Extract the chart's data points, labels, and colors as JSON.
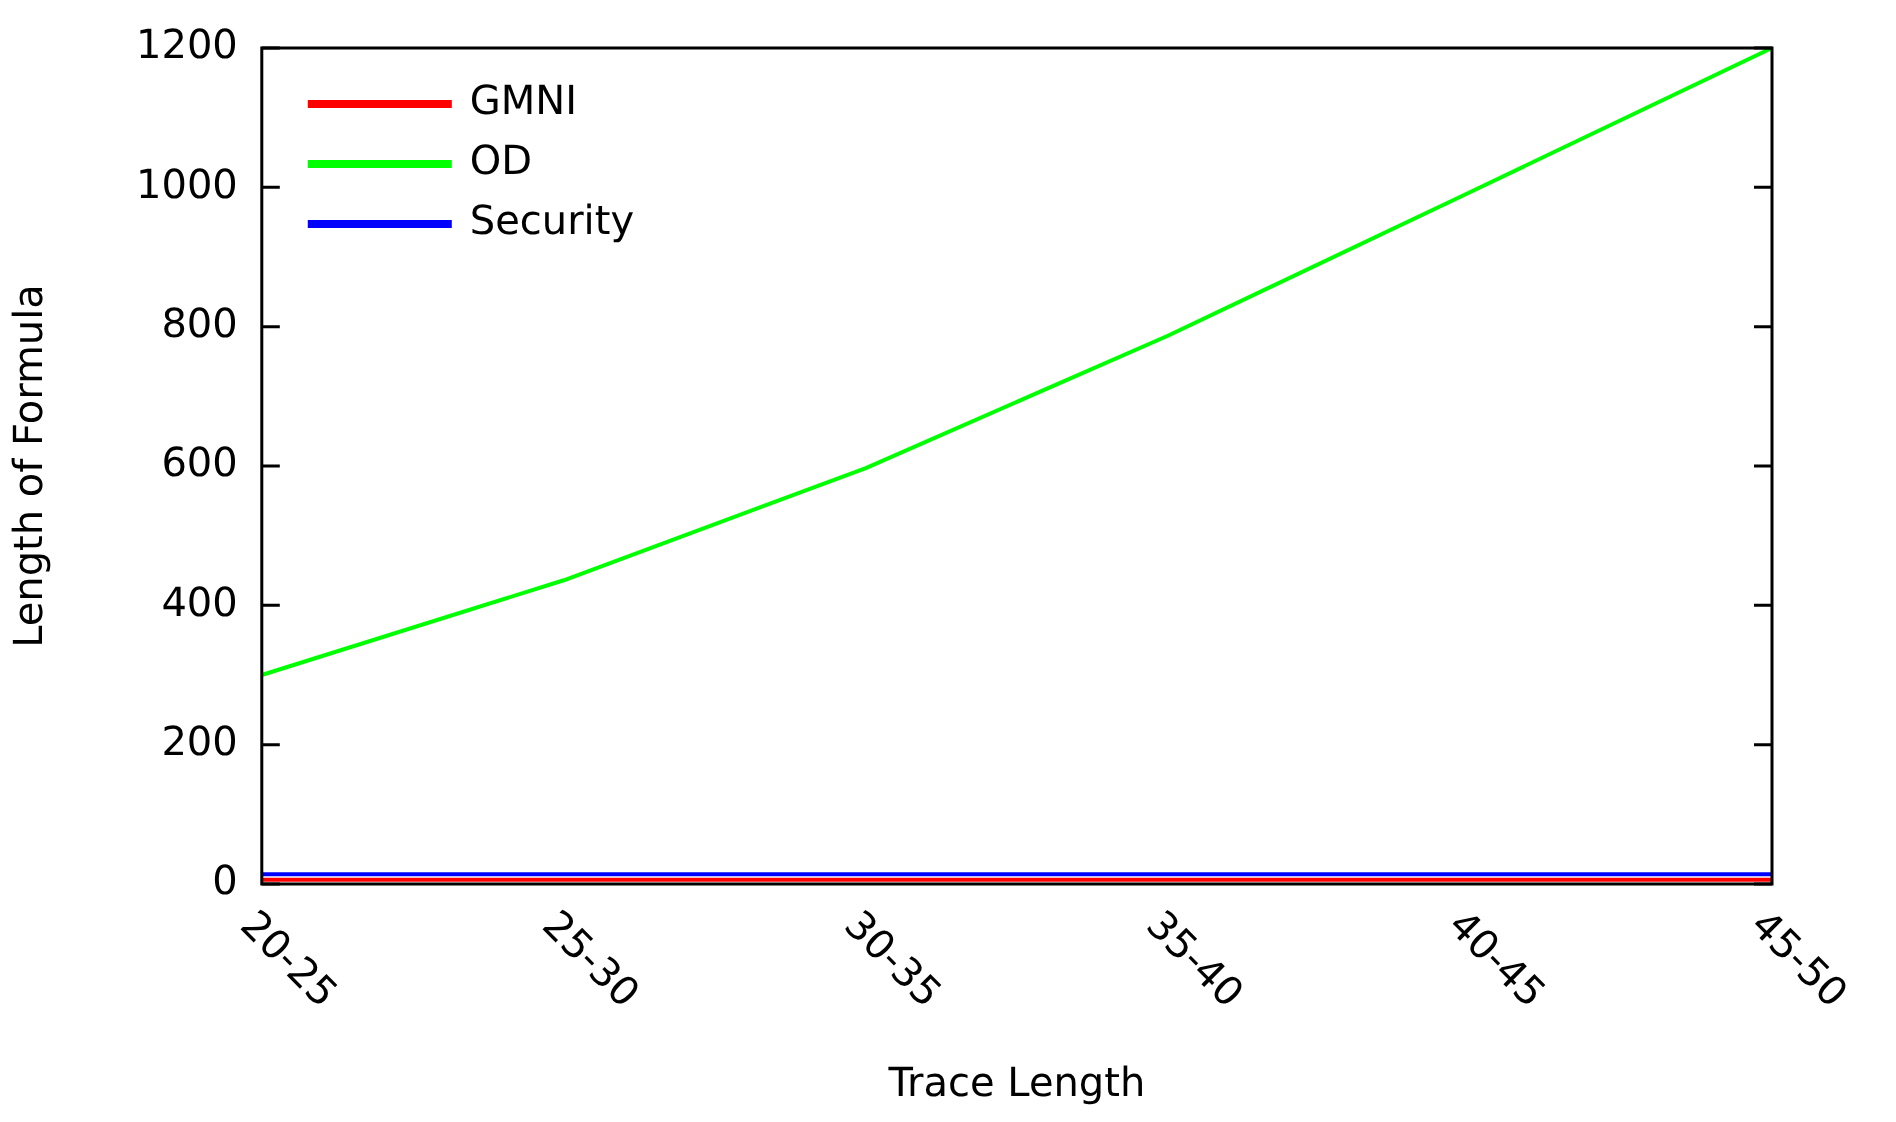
{
  "chart_data": {
    "type": "line",
    "xlabel": "Trace Length",
    "ylabel": "Length of Formula",
    "categories": [
      "20-25",
      "25-30",
      "30-35",
      "35-40",
      "40-45",
      "45-50"
    ],
    "series": [
      {
        "name": "GMNI",
        "color": "#ff0000",
        "values": [
          6,
          6,
          6,
          6,
          6,
          6
        ]
      },
      {
        "name": "OD",
        "color": "#00ff00",
        "values": [
          300,
          436,
          597,
          787,
          993,
          1200
        ]
      },
      {
        "name": "Security",
        "color": "#0000ff",
        "values": [
          14,
          14,
          14,
          14,
          14,
          14
        ]
      }
    ],
    "ylim": [
      0,
      1200
    ],
    "yticks": [
      0,
      200,
      400,
      600,
      800,
      1000,
      1200
    ],
    "grid": false,
    "legend": "top left",
    "marker": "none",
    "line_style": "solid"
  }
}
